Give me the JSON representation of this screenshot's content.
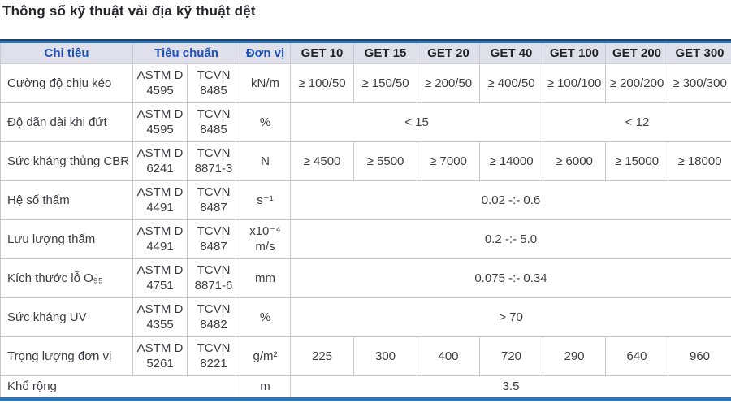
{
  "page": {
    "title": "Thông số kỹ thuật vải địa kỹ thuật dệt"
  },
  "colors": {
    "accent_bar": "#2e74b5",
    "accent_bar_dark": "#1d4470",
    "header_bg": "#dfe0ea",
    "header_label_text": "#1d52bb",
    "header_product_text": "#222228",
    "body_text": "#3c3c44",
    "grid_line": "#c6c7d0",
    "title_text": "#26262c"
  },
  "table": {
    "header": {
      "criteria": "Chỉ tiêu",
      "standard": "Tiêu chuẩn",
      "unit": "Đơn vị",
      "products": [
        "GET 10",
        "GET 15",
        "GET 20",
        "GET 40",
        "GET 100",
        "GET 200",
        "GET 300"
      ]
    },
    "rows": [
      {
        "label": "Cường độ chịu kéo",
        "astm": "ASTM D 4595",
        "tcvn": "TCVN 8485",
        "unit": "kN/m",
        "values": [
          {
            "text": "≥ 100/50",
            "span": 1
          },
          {
            "text": "≥ 150/50",
            "span": 1
          },
          {
            "text": "≥ 200/50",
            "span": 1
          },
          {
            "text": "≥ 400/50",
            "span": 1
          },
          {
            "text": "≥ 100/100",
            "span": 1
          },
          {
            "text": "≥ 200/200",
            "span": 1
          },
          {
            "text": "≥ 300/300",
            "span": 1
          }
        ]
      },
      {
        "label": "Độ dãn dài khi đứt",
        "astm": "ASTM D 4595",
        "tcvn": "TCVN 8485",
        "unit": "%",
        "values": [
          {
            "text": "< 15",
            "span": 4
          },
          {
            "text": "< 12",
            "span": 3
          }
        ]
      },
      {
        "label": "Sức kháng thủng CBR",
        "astm": "ASTM D 6241",
        "tcvn": "TCVN 8871-3",
        "unit": "N",
        "values": [
          {
            "text": "≥ 4500",
            "span": 1
          },
          {
            "text": "≥ 5500",
            "span": 1
          },
          {
            "text": "≥ 7000",
            "span": 1
          },
          {
            "text": "≥ 14000",
            "span": 1
          },
          {
            "text": "≥ 6000",
            "span": 1
          },
          {
            "text": "≥ 15000",
            "span": 1
          },
          {
            "text": "≥ 18000",
            "span": 1
          }
        ]
      },
      {
        "label": "Hệ số thấm",
        "astm": "ASTM D 4491",
        "tcvn": "TCVN 8487",
        "unit": "s⁻¹",
        "values": [
          {
            "text": "0.02 -:- 0.6",
            "span": 7
          }
        ]
      },
      {
        "label": "Lưu lượng thấm",
        "astm": "ASTM D 4491",
        "tcvn": "TCVN 8487",
        "unit": "x10⁻⁴ m/s",
        "values": [
          {
            "text": "0.2 -:- 5.0",
            "span": 7
          }
        ]
      },
      {
        "label": "Kích thước lỗ O₉₅",
        "astm": "ASTM D 4751",
        "tcvn": "TCVN 8871-6",
        "unit": "mm",
        "values": [
          {
            "text": "0.075 -:- 0.34",
            "span": 7
          }
        ]
      },
      {
        "label": "Sức kháng UV",
        "astm": "ASTM D 4355",
        "tcvn": "TCVN 8482",
        "unit": "%",
        "values": [
          {
            "text": "> 70",
            "span": 7
          }
        ]
      },
      {
        "label": "Trọng lượng đơn vị",
        "astm": "ASTM D 5261",
        "tcvn": "TCVN 8221",
        "unit": "g/m²",
        "values": [
          {
            "text": "225",
            "span": 1
          },
          {
            "text": "300",
            "span": 1
          },
          {
            "text": "400",
            "span": 1
          },
          {
            "text": "720",
            "span": 1
          },
          {
            "text": "290",
            "span": 1
          },
          {
            "text": "640",
            "span": 1
          },
          {
            "text": "960",
            "span": 1
          }
        ]
      },
      {
        "label": "Khổ rộng",
        "unit": "m",
        "values": [
          {
            "text": "3.5",
            "span": 7
          }
        ]
      }
    ]
  }
}
